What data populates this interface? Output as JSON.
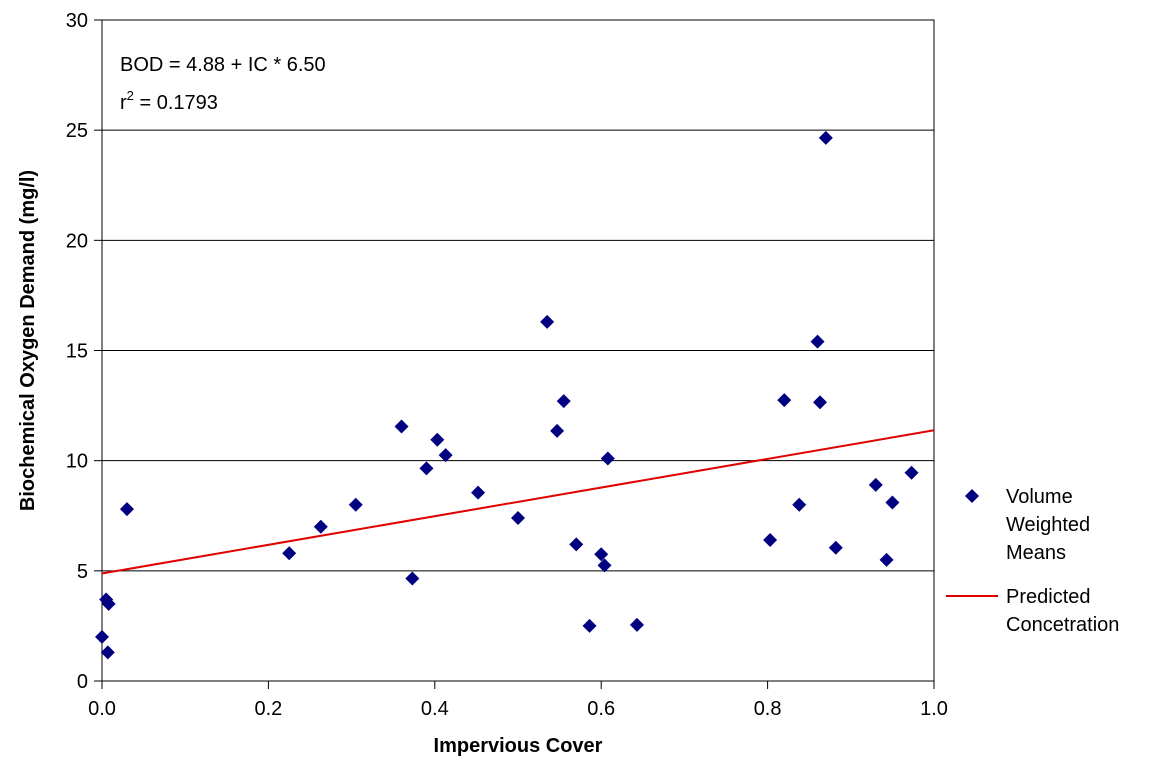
{
  "chart_data": {
    "type": "scatter",
    "xlabel": "Impervious Cover",
    "ylabel": "Biochemical Oxygen Demand (mg/l)",
    "xlim": [
      0,
      1.0
    ],
    "ylim": [
      0,
      30
    ],
    "x_ticks": [
      "0.0",
      "0.2",
      "0.4",
      "0.6",
      "0.8",
      "1.0"
    ],
    "y_ticks": [
      "0",
      "5",
      "10",
      "15",
      "20",
      "25",
      "30"
    ],
    "grid": "horizontal",
    "legend_position": "right",
    "annotation": {
      "equation": "BOD = 4.88 + IC * 6.50",
      "r2_prefix": "r",
      "r2_superscript": "2",
      "r2_value": " = 0.1793"
    },
    "series": [
      {
        "name": "Volume Weighted Means",
        "legend_lines": [
          "Volume",
          "Weighted",
          "Means"
        ],
        "kind": "scatter",
        "marker": "diamond",
        "color": "#000080",
        "points": [
          [
            0.0,
            2.0
          ],
          [
            0.005,
            3.7
          ],
          [
            0.007,
            1.3
          ],
          [
            0.008,
            3.5
          ],
          [
            0.03,
            7.8
          ],
          [
            0.225,
            5.8
          ],
          [
            0.263,
            7.0
          ],
          [
            0.305,
            8.0
          ],
          [
            0.36,
            11.55
          ],
          [
            0.373,
            4.65
          ],
          [
            0.39,
            9.65
          ],
          [
            0.403,
            10.95
          ],
          [
            0.413,
            10.25
          ],
          [
            0.452,
            8.55
          ],
          [
            0.5,
            7.4
          ],
          [
            0.535,
            16.3
          ],
          [
            0.547,
            11.35
          ],
          [
            0.555,
            12.7
          ],
          [
            0.57,
            6.2
          ],
          [
            0.586,
            2.5
          ],
          [
            0.6,
            5.75
          ],
          [
            0.604,
            5.25
          ],
          [
            0.608,
            10.1
          ],
          [
            0.643,
            2.55
          ],
          [
            0.803,
            6.4
          ],
          [
            0.82,
            12.75
          ],
          [
            0.838,
            8.0
          ],
          [
            0.86,
            15.4
          ],
          [
            0.863,
            12.65
          ],
          [
            0.87,
            24.65
          ],
          [
            0.882,
            6.05
          ],
          [
            0.93,
            8.9
          ],
          [
            0.943,
            5.5
          ],
          [
            0.95,
            8.1
          ],
          [
            0.973,
            9.45
          ]
        ]
      },
      {
        "name": "Predicted Concetration",
        "legend_lines": [
          "Predicted",
          "Concetration"
        ],
        "kind": "line",
        "color": "#e00000",
        "points": [
          [
            0.0,
            4.88
          ],
          [
            1.0,
            11.38
          ]
        ]
      }
    ]
  }
}
